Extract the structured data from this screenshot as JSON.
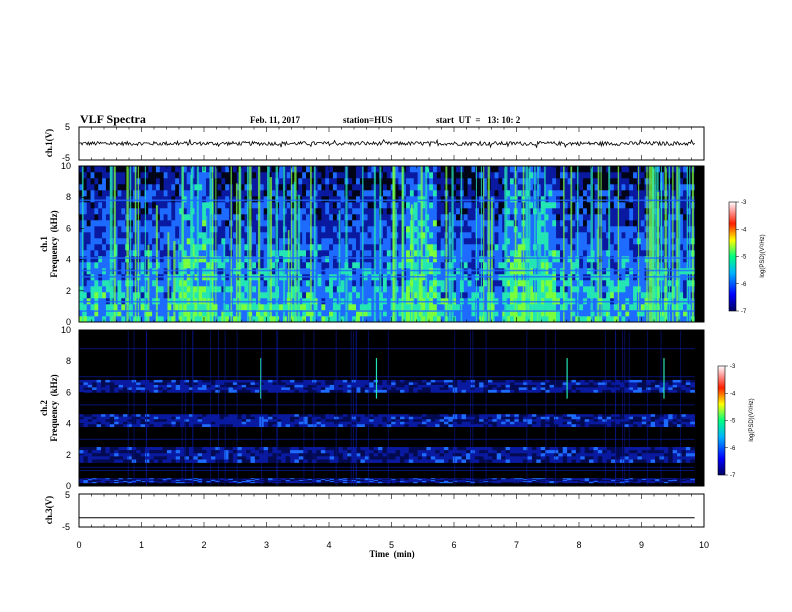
{
  "header": {
    "title": "VLF Spectra",
    "date": "Feb. 11, 2017",
    "station": "station=HUS",
    "start": "start  UT  =   13: 10: 2"
  },
  "chart_data": [
    {
      "type": "line",
      "id": "ch1v",
      "ylabel": "ch.1(V)",
      "xlim": [
        0,
        10
      ],
      "ylim": [
        -5,
        5
      ],
      "yticks": [
        "5",
        "-5"
      ],
      "series": [
        {
          "baseline": 0,
          "noise_amplitude": 0.6
        }
      ]
    },
    {
      "type": "heatmap",
      "id": "ch1spec",
      "ylabel_lines": [
        "ch.1",
        "Frequency  (kHz)"
      ],
      "xlim": [
        0,
        10
      ],
      "ylim": [
        0,
        10
      ],
      "yticks": [
        "0",
        "2",
        "4",
        "6",
        "8",
        "10"
      ],
      "colorbar": {
        "label": "log(PSD)(V²/Hz)",
        "ticks": [
          "-3",
          "-4",
          "-5",
          "-6",
          "-7"
        ],
        "range": [
          -7,
          -3
        ]
      },
      "intensity_bands": [
        [
          0,
          2,
          -5.2
        ],
        [
          2,
          4,
          -5.8
        ],
        [
          4,
          6,
          -6.3
        ],
        [
          6,
          10,
          -6.5
        ]
      ],
      "bright_time_spans": [
        [
          1.6,
          2.1
        ],
        [
          6.8,
          7.6
        ],
        [
          5.2,
          5.7
        ]
      ]
    },
    {
      "type": "heatmap",
      "id": "ch2spec",
      "ylabel_lines": [
        "ch.2",
        "Frequency  (kHz)"
      ],
      "xlim": [
        0,
        10
      ],
      "ylim": [
        0,
        10
      ],
      "yticks": [
        "0",
        "2",
        "4",
        "6",
        "8",
        "10"
      ],
      "colorbar": {
        "label": "log(PSD)(V²/Hz)",
        "ticks": [
          "-3",
          "-4",
          "-5",
          "-6",
          "-7"
        ],
        "range": [
          -7,
          -3
        ]
      },
      "bands_khz": [
        [
          0.2,
          0.5
        ],
        [
          1.5,
          2.5
        ],
        [
          3.8,
          4.6
        ],
        [
          6.0,
          6.8
        ]
      ],
      "spike_times_min": [
        2.9,
        4.75,
        7.8,
        9.35
      ]
    },
    {
      "type": "line",
      "id": "ch3v",
      "ylabel": "ch.3(V)",
      "xlabel": "Time  (min)",
      "xlim": [
        0,
        10
      ],
      "ylim": [
        -5,
        5
      ],
      "yticks": [
        "5",
        "-5"
      ],
      "xticks": [
        "0",
        "1",
        "2",
        "3",
        "4",
        "5",
        "6",
        "7",
        "8",
        "9",
        "10"
      ],
      "series": [
        {
          "baseline": -2.2
        }
      ]
    }
  ],
  "colors": {
    "spectrogram_background": "#000000",
    "low": "#0a1aa0",
    "mid": "#1e6cff",
    "high": "#24e6b4",
    "peak": "#7aff3c",
    "frame": "#000000"
  }
}
